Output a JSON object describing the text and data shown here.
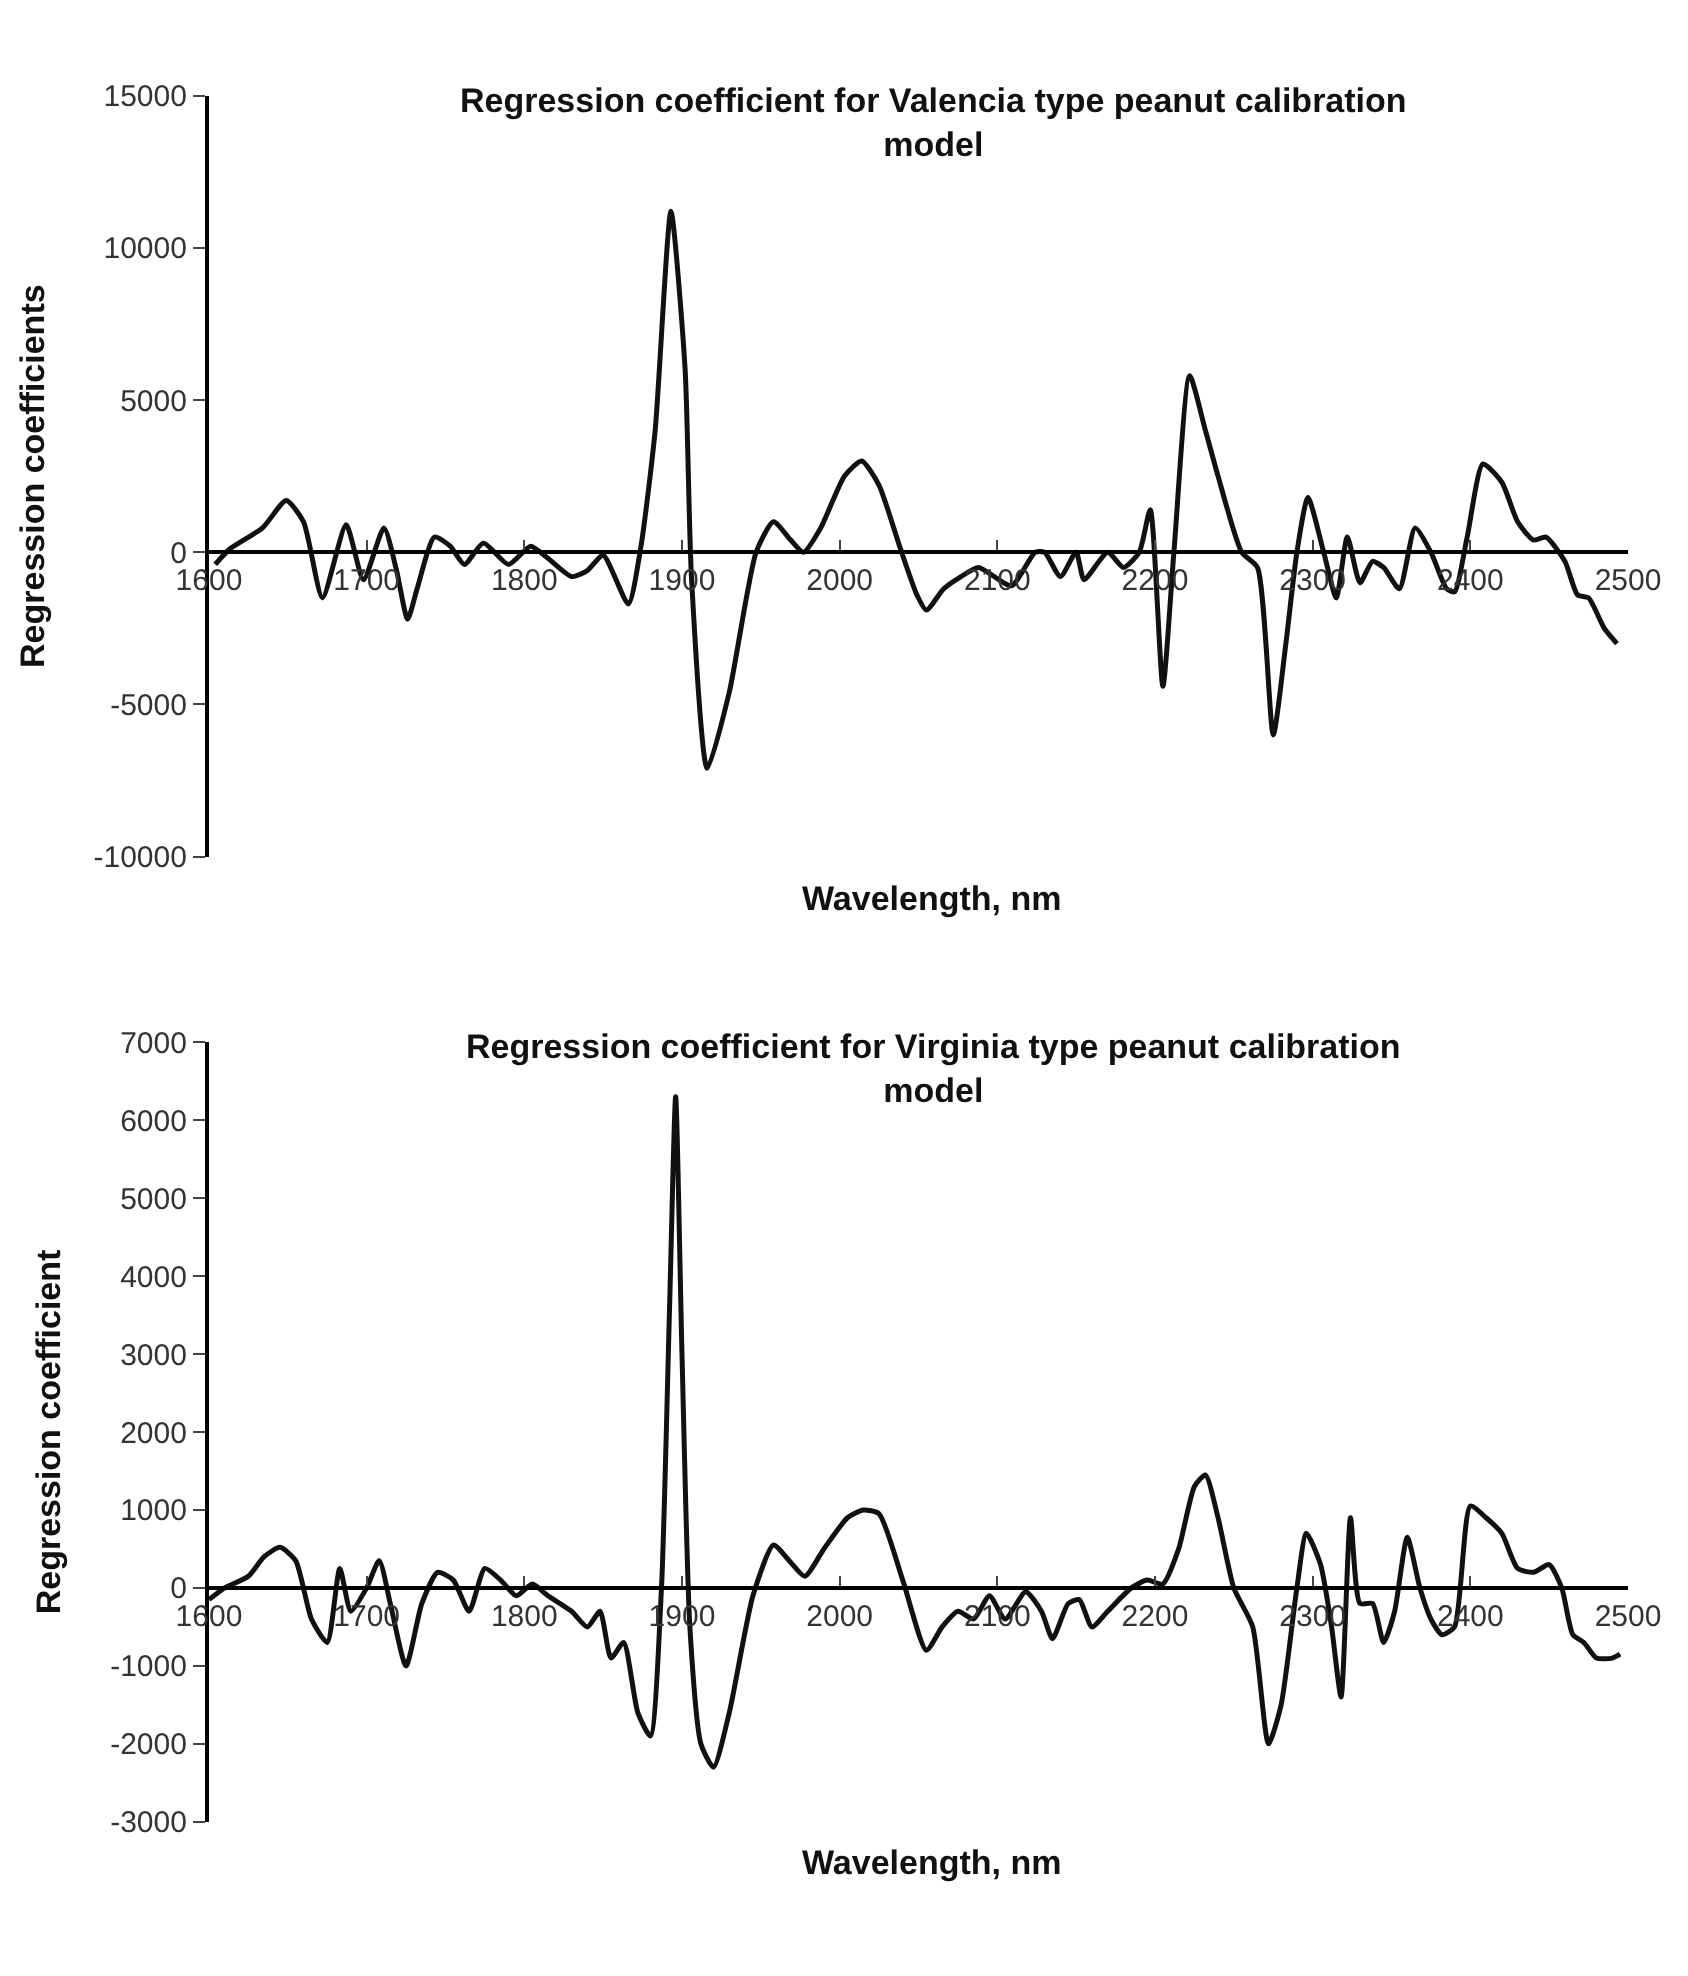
{
  "chart_data": [
    {
      "type": "line",
      "title": "Regression coefficient for Valencia type peanut calibration model",
      "xlabel": "Wavelength, nm",
      "ylabel": "Regression coefficients",
      "xlim": [
        1600,
        2500
      ],
      "xticks": [
        1600,
        1700,
        1800,
        1900,
        2000,
        2100,
        2200,
        2300,
        2400,
        2500
      ],
      "ylim": [
        -10000,
        15000
      ],
      "yticks": [
        -10000,
        -5000,
        0,
        5000,
        10000,
        15000
      ],
      "marker": "none",
      "line_style": "solid",
      "series": [
        {
          "color": "#111111",
          "x": [
            1604,
            1613,
            1634,
            1649,
            1660,
            1672,
            1687,
            1698,
            1711,
            1719,
            1726,
            1732,
            1743,
            1753,
            1762,
            1774,
            1790,
            1804,
            1815,
            1830,
            1840,
            1850,
            1866,
            1874,
            1883,
            1893,
            1902,
            1906,
            1916,
            1930,
            1947,
            1958,
            1969,
            1977,
            1988,
            2003,
            2014,
            2025,
            2038,
            2049,
            2055,
            2066,
            2077,
            2088,
            2109,
            2124,
            2130,
            2140,
            2150,
            2155,
            2170,
            2180,
            2190,
            2197,
            2205,
            2212,
            2222,
            2232,
            2240,
            2255,
            2265,
            2275,
            2283,
            2290,
            2297,
            2307,
            2315,
            2322,
            2330,
            2338,
            2345,
            2355,
            2365,
            2375,
            2385,
            2390,
            2398,
            2408,
            2420,
            2430,
            2440,
            2448,
            2460,
            2468,
            2475,
            2485,
            2493
          ],
          "values": [
            -400,
            100,
            800,
            1700,
            1000,
            -1500,
            900,
            -900,
            800,
            -600,
            -2200,
            -1200,
            500,
            200,
            -400,
            300,
            -400,
            200,
            -200,
            -800,
            -600,
            -100,
            -1700,
            200,
            4000,
            11200,
            6000,
            -800,
            -7100,
            -4600,
            0,
            1000,
            400,
            0,
            800,
            2500,
            3000,
            2200,
            200,
            -1400,
            -1900,
            -1200,
            -800,
            -500,
            -1100,
            0,
            0,
            -800,
            0,
            -900,
            0,
            -500,
            0,
            1400,
            -4400,
            0,
            5800,
            4000,
            2500,
            0,
            -500,
            -6000,
            -3000,
            0,
            1800,
            0,
            -1500,
            500,
            -1000,
            -300,
            -500,
            -1200,
            800,
            0,
            -1200,
            -1300,
            500,
            2900,
            2300,
            1000,
            400,
            500,
            -300,
            -1400,
            -1500,
            -2500,
            -3000
          ]
        }
      ]
    },
    {
      "type": "line",
      "title": "Regression coefficient for Virginia type peanut calibration model",
      "xlabel": "Wavelength, nm",
      "ylabel": "Regression coefficient",
      "xlim": [
        1600,
        2500
      ],
      "xticks": [
        1600,
        1700,
        1800,
        1900,
        2000,
        2100,
        2200,
        2300,
        2400,
        2500
      ],
      "ylim": [
        -3000,
        7000
      ],
      "yticks": [
        -3000,
        -2000,
        -1000,
        0,
        1000,
        2000,
        3000,
        4000,
        5000,
        6000,
        7000
      ],
      "marker": "none",
      "line_style": "solid",
      "series": [
        {
          "color": "#111111",
          "x": [
            1600,
            1610,
            1625,
            1635,
            1645,
            1655,
            1665,
            1675,
            1683,
            1690,
            1700,
            1708,
            1715,
            1725,
            1735,
            1745,
            1755,
            1765,
            1775,
            1785,
            1795,
            1805,
            1815,
            1830,
            1840,
            1848,
            1855,
            1863,
            1872,
            1880,
            1887,
            1892,
            1896,
            1900,
            1905,
            1912,
            1920,
            1930,
            1945,
            1958,
            1968,
            1978,
            1990,
            2005,
            2015,
            2025,
            2040,
            2055,
            2065,
            2075,
            2085,
            2095,
            2105,
            2118,
            2128,
            2135,
            2145,
            2152,
            2160,
            2170,
            2185,
            2195,
            2205,
            2215,
            2225,
            2232,
            2240,
            2250,
            2262,
            2272,
            2280,
            2290,
            2296,
            2305,
            2312,
            2318,
            2324,
            2330,
            2338,
            2345,
            2352,
            2360,
            2368,
            2375,
            2382,
            2390,
            2400,
            2410,
            2420,
            2430,
            2440,
            2450,
            2458,
            2465,
            2472,
            2480,
            2490,
            2495
          ],
          "values": [
            -150,
            0,
            150,
            400,
            520,
            350,
            -400,
            -700,
            250,
            -300,
            0,
            350,
            -200,
            -1000,
            -200,
            200,
            100,
            -300,
            250,
            100,
            -100,
            50,
            -100,
            -300,
            -500,
            -300,
            -900,
            -700,
            -1600,
            -1900,
            0,
            3500,
            6300,
            3000,
            -500,
            -2000,
            -2300,
            -1600,
            -100,
            550,
            350,
            150,
            500,
            900,
            1000,
            950,
            100,
            -800,
            -500,
            -300,
            -400,
            -100,
            -400,
            -50,
            -300,
            -650,
            -200,
            -150,
            -500,
            -300,
            0,
            100,
            50,
            500,
            1300,
            1450,
            900,
            0,
            -500,
            -2000,
            -1500,
            0,
            700,
            300,
            -500,
            -1400,
            900,
            -200,
            -200,
            -700,
            -300,
            650,
            0,
            -400,
            -600,
            -500,
            1050,
            900,
            700,
            250,
            200,
            300,
            0,
            -600,
            -700,
            -900,
            -900,
            -850
          ]
        }
      ]
    }
  ]
}
